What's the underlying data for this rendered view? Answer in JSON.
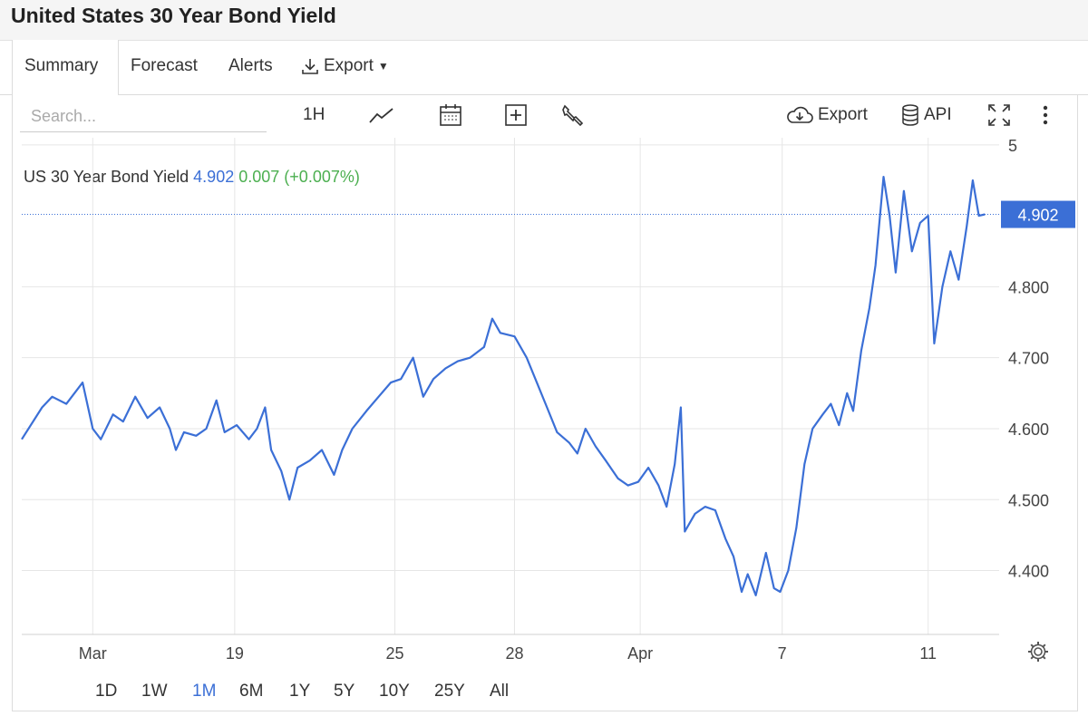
{
  "header": {
    "title": "United States 30 Year Bond Yield"
  },
  "tabs": [
    {
      "label": "Summary"
    },
    {
      "label": "Forecast"
    },
    {
      "label": "Alerts"
    },
    {
      "label": "Export"
    }
  ],
  "toolbar": {
    "search_placeholder": "Search...",
    "interval_label": "1H",
    "export_label": "Export",
    "api_label": "API",
    "icons": [
      "line-chart-icon",
      "calendar-icon",
      "plus-box-icon",
      "wrench-icon",
      "cloud-download-icon",
      "database-icon",
      "fullscreen-icon",
      "more-vert-icon",
      "gear-icon"
    ]
  },
  "legend": {
    "name": "US 30 Year Bond Yield",
    "value": "4.902",
    "change": "0.007",
    "change_pct": "(+0.007%)"
  },
  "ranges": [
    "1D",
    "1W",
    "1M",
    "6M",
    "1Y",
    "5Y",
    "10Y",
    "25Y",
    "All"
  ],
  "active_range": "1M",
  "colors": {
    "line": "#3b6fd6",
    "accent": "#3b6fd6",
    "positive": "#4caf50",
    "grid": "#e6e6e6"
  },
  "chart_data": {
    "type": "line",
    "title": "United States 30 Year Bond Yield",
    "series": [
      {
        "name": "US 30 Year Bond Yield",
        "points": [
          [
            0.0,
            4.585
          ],
          [
            1.0,
            4.63
          ],
          [
            1.5,
            4.645
          ],
          [
            2.2,
            4.635
          ],
          [
            3.0,
            4.665
          ],
          [
            3.5,
            4.6
          ],
          [
            3.9,
            4.585
          ],
          [
            4.5,
            4.62
          ],
          [
            5.0,
            4.61
          ],
          [
            5.6,
            4.645
          ],
          [
            6.2,
            4.615
          ],
          [
            6.8,
            4.63
          ],
          [
            7.3,
            4.6
          ],
          [
            7.6,
            4.57
          ],
          [
            8.0,
            4.595
          ],
          [
            8.6,
            4.59
          ],
          [
            9.1,
            4.6
          ],
          [
            9.6,
            4.64
          ],
          [
            10.0,
            4.595
          ],
          [
            10.6,
            4.605
          ],
          [
            11.2,
            4.585
          ],
          [
            11.6,
            4.6
          ],
          [
            12.0,
            4.63
          ],
          [
            12.3,
            4.57
          ],
          [
            12.8,
            4.54
          ],
          [
            13.2,
            4.5
          ],
          [
            13.6,
            4.545
          ],
          [
            14.2,
            4.555
          ],
          [
            14.8,
            4.57
          ],
          [
            15.4,
            4.535
          ],
          [
            15.8,
            4.57
          ],
          [
            16.3,
            4.6
          ],
          [
            17.0,
            4.625
          ],
          [
            17.6,
            4.645
          ],
          [
            18.2,
            4.665
          ],
          [
            18.7,
            4.67
          ],
          [
            19.3,
            4.7
          ],
          [
            19.8,
            4.645
          ],
          [
            20.3,
            4.67
          ],
          [
            20.9,
            4.685
          ],
          [
            21.5,
            4.695
          ],
          [
            22.1,
            4.7
          ],
          [
            22.8,
            4.715
          ],
          [
            23.2,
            4.755
          ],
          [
            23.6,
            4.735
          ],
          [
            24.3,
            4.73
          ],
          [
            24.9,
            4.7
          ],
          [
            25.4,
            4.665
          ],
          [
            25.9,
            4.63
          ],
          [
            26.4,
            4.595
          ],
          [
            27.0,
            4.58
          ],
          [
            27.4,
            4.565
          ],
          [
            27.8,
            4.6
          ],
          [
            28.3,
            4.575
          ],
          [
            28.8,
            4.555
          ],
          [
            29.4,
            4.53
          ],
          [
            29.9,
            4.52
          ],
          [
            30.4,
            4.525
          ],
          [
            30.9,
            4.545
          ],
          [
            31.4,
            4.52
          ],
          [
            31.8,
            4.49
          ],
          [
            32.2,
            4.55
          ],
          [
            32.5,
            4.63
          ],
          [
            32.7,
            4.455
          ],
          [
            33.2,
            4.48
          ],
          [
            33.7,
            4.49
          ],
          [
            34.2,
            4.485
          ],
          [
            34.7,
            4.445
          ],
          [
            35.1,
            4.42
          ],
          [
            35.5,
            4.37
          ],
          [
            35.8,
            4.395
          ],
          [
            36.2,
            4.365
          ],
          [
            36.7,
            4.425
          ],
          [
            37.1,
            4.375
          ],
          [
            37.4,
            4.37
          ],
          [
            37.8,
            4.4
          ],
          [
            38.2,
            4.46
          ],
          [
            38.6,
            4.55
          ],
          [
            39.0,
            4.6
          ],
          [
            39.5,
            4.62
          ],
          [
            39.9,
            4.635
          ],
          [
            40.3,
            4.605
          ],
          [
            40.7,
            4.65
          ],
          [
            41.0,
            4.625
          ],
          [
            41.4,
            4.71
          ],
          [
            41.8,
            4.77
          ],
          [
            42.1,
            4.83
          ],
          [
            42.5,
            4.955
          ],
          [
            42.8,
            4.9
          ],
          [
            43.1,
            4.82
          ],
          [
            43.5,
            4.935
          ],
          [
            43.9,
            4.85
          ],
          [
            44.3,
            4.89
          ],
          [
            44.7,
            4.9
          ],
          [
            45.0,
            4.72
          ],
          [
            45.4,
            4.8
          ],
          [
            45.8,
            4.85
          ],
          [
            46.2,
            4.81
          ],
          [
            46.6,
            4.885
          ],
          [
            46.9,
            4.95
          ],
          [
            47.2,
            4.9
          ],
          [
            47.5,
            4.902
          ]
        ]
      }
    ],
    "x_tick_labels": [
      {
        "label": "Mar",
        "x": 3.5
      },
      {
        "label": "19",
        "x": 10.5
      },
      {
        "label": "25",
        "x": 18.4
      },
      {
        "label": "28",
        "x": 24.3
      },
      {
        "label": "Apr",
        "x": 30.5
      },
      {
        "label": "7",
        "x": 37.5
      },
      {
        "label": "11",
        "x": 44.7
      }
    ],
    "y_tick_labels": [
      "5",
      "4.800",
      "4.700",
      "4.600",
      "4.500",
      "4.400"
    ],
    "y_ticks": [
      5.0,
      4.8,
      4.7,
      4.6,
      4.5,
      4.4
    ],
    "ylim": [
      4.31,
      5.01
    ],
    "xlim": [
      0,
      48.2
    ],
    "last_value": 4.902,
    "last_value_label": "4.902",
    "grid": true
  }
}
